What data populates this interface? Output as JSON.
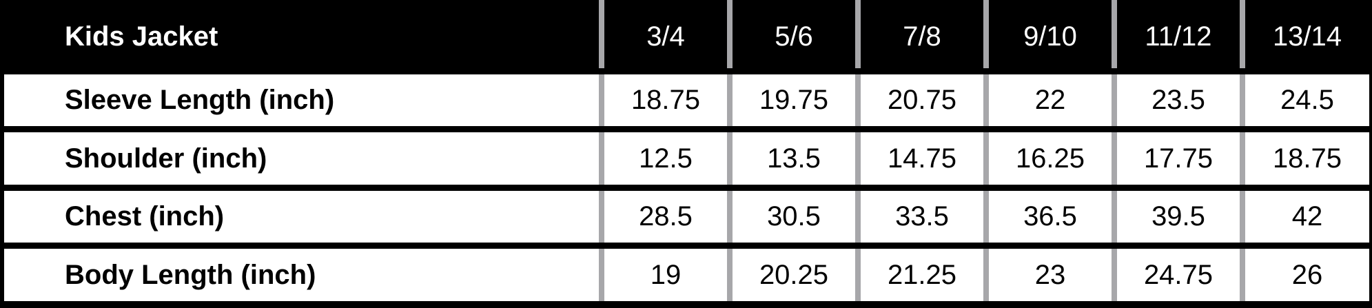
{
  "table": {
    "title": "Kids Jacket",
    "sizes": [
      "3/4",
      "5/6",
      "7/8",
      "9/10",
      "11/12",
      "13/14"
    ],
    "rows": [
      {
        "label": "Sleeve Length (inch)",
        "values": [
          "18.75",
          "19.75",
          "20.75",
          "22",
          "23.5",
          "24.5"
        ]
      },
      {
        "label": "Shoulder (inch)",
        "values": [
          "12.5",
          "13.5",
          "14.75",
          "16.25",
          "17.75",
          "18.75"
        ]
      },
      {
        "label": "Chest (inch)",
        "values": [
          "28.5",
          "30.5",
          "33.5",
          "36.5",
          "39.5",
          "42"
        ]
      },
      {
        "label": "Body Length (inch)",
        "values": [
          "19",
          "20.25",
          "21.25",
          "23",
          "24.75",
          "26"
        ]
      }
    ]
  }
}
